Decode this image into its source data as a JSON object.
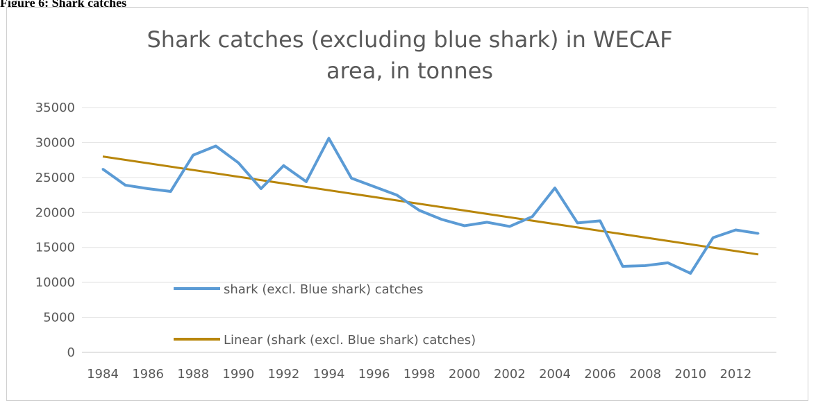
{
  "figure_label": "Figure 6: Shark catches",
  "chart_data": {
    "type": "line",
    "title_lines": [
      "Shark catches (excluding blue shark) in WECAF",
      "area, in tonnes"
    ],
    "xlabel": "",
    "ylabel": "",
    "ylim": [
      0,
      35000
    ],
    "y_ticks": [
      0,
      5000,
      10000,
      15000,
      20000,
      25000,
      30000,
      35000
    ],
    "x_ticks": [
      "1984",
      "1986",
      "1988",
      "1990",
      "1992",
      "1994",
      "1996",
      "1998",
      "2000",
      "2002",
      "2004",
      "2006",
      "2008",
      "2010",
      "2012"
    ],
    "grid": true,
    "legend_placement": "inside-lower-left",
    "x": [
      1984,
      1985,
      1986,
      1987,
      1988,
      1989,
      1990,
      1991,
      1992,
      1993,
      1994,
      1995,
      1996,
      1997,
      1998,
      1999,
      2000,
      2001,
      2002,
      2003,
      2004,
      2005,
      2006,
      2007,
      2008,
      2009,
      2010,
      2011,
      2012,
      2013
    ],
    "series": [
      {
        "name": "shark (excl. Blue shark) catches",
        "color": "#5B9BD5",
        "values": [
          26200,
          23900,
          23400,
          23000,
          28200,
          29500,
          27100,
          23400,
          26700,
          24400,
          30600,
          24900,
          23700,
          22500,
          20300,
          19000,
          18100,
          18600,
          18000,
          19400,
          23500,
          18500,
          18800,
          12300,
          12400,
          12800,
          11300,
          16400,
          17500,
          17000
        ]
      },
      {
        "name": "Linear (shark (excl. Blue shark) catches)",
        "color": "#B8860B",
        "trendline": true,
        "values_at_ends": [
          28000,
          14000
        ]
      }
    ]
  }
}
